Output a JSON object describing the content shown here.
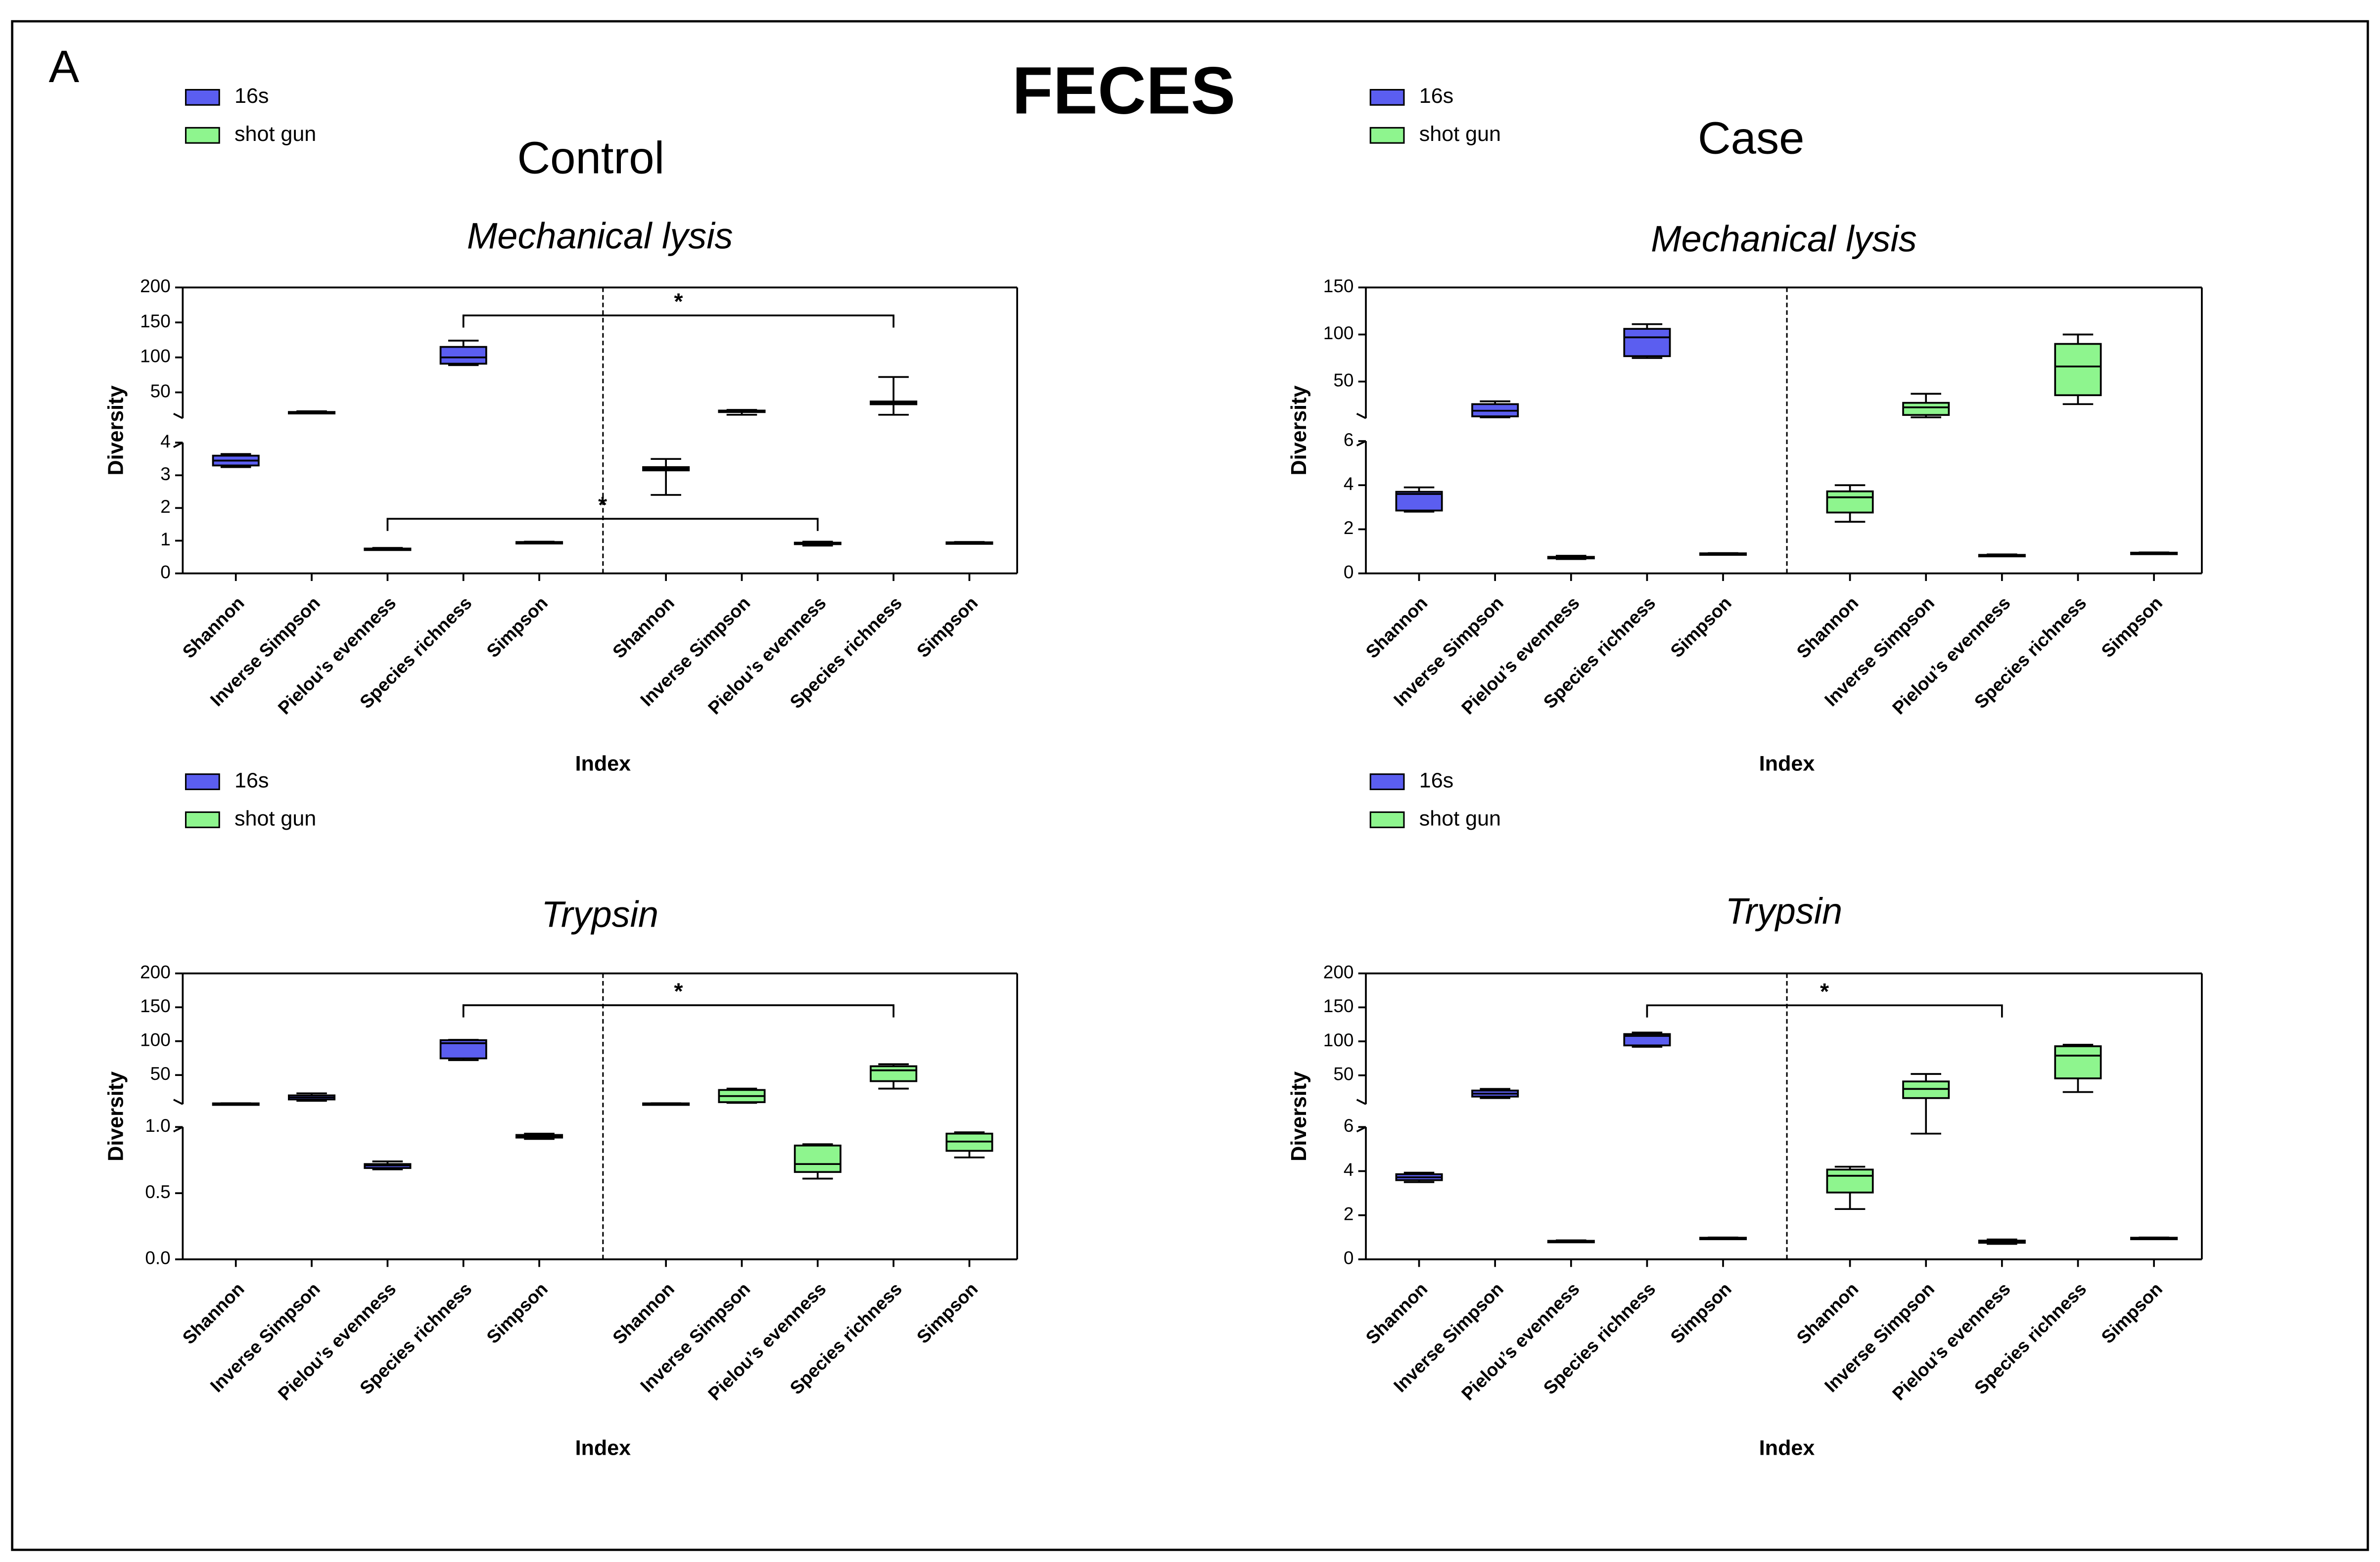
{
  "figure": {
    "label": "A",
    "title": "FECES",
    "columns": [
      "Control",
      "Case"
    ]
  },
  "chart_data": [
    {
      "type": "box",
      "title": "Mechanical lysis",
      "xlabel": "Index",
      "ylabel": "Diversity",
      "categories": [
        "Shannon",
        "Inverse Simpson",
        "Pielou’s evenness",
        "Species richness",
        "Simpson"
      ],
      "ylim": [
        0,
        4
      ],
      "yticks": [
        0,
        1,
        2,
        3,
        4
      ],
      "upper_ylim": [
        13,
        200
      ],
      "upper_yticks": [
        50,
        100,
        150,
        200
      ],
      "series": [
        {
          "name": "16s",
          "color": "#5b5ef0",
          "min": [
            3.25,
            20,
            0.72,
            89,
            0.93
          ],
          "q1": [
            3.3,
            21,
            0.74,
            91,
            0.94
          ],
          "median": [
            3.45,
            21.5,
            0.75,
            100,
            0.95
          ],
          "q3": [
            3.6,
            22,
            0.76,
            115,
            0.96
          ],
          "max": [
            3.65,
            23,
            0.78,
            124,
            0.97
          ]
        },
        {
          "name": "shot gun",
          "color": "#8ef58e",
          "min": [
            2.4,
            18,
            0.85,
            18,
            0.92
          ],
          "q1": [
            3.15,
            22,
            0.9,
            33,
            0.93
          ],
          "median": [
            3.2,
            23,
            0.92,
            35,
            0.94
          ],
          "q3": [
            3.25,
            24,
            0.94,
            37,
            0.95
          ],
          "max": [
            3.5,
            25,
            0.97,
            72,
            0.96
          ]
        }
      ],
      "annotations": [
        {
          "text": "*",
          "y": 160,
          "from": {
            "series": "16s",
            "category": "Species richness"
          },
          "to": {
            "series": "shot gun",
            "category": "Species richness"
          }
        },
        {
          "text": "*",
          "y": 1.67,
          "from": {
            "series": "16s",
            "category": "Pielou’s evenness"
          },
          "to": {
            "series": "shot gun",
            "category": "Pielou’s evenness"
          }
        }
      ]
    },
    {
      "type": "box",
      "title": "Mechanical lysis",
      "xlabel": "Index",
      "ylabel": "Diversity",
      "categories": [
        "Shannon",
        "Inverse Simpson",
        "Pielou’s evenness",
        "Species richness",
        "Simpson"
      ],
      "ylim": [
        0,
        6
      ],
      "yticks": [
        0,
        2,
        4,
        6
      ],
      "upper_ylim": [
        11,
        150
      ],
      "upper_yticks": [
        50,
        100,
        150
      ],
      "series": [
        {
          "name": "16s",
          "color": "#5b5ef0",
          "min": [
            2.8,
            12,
            0.65,
            75,
            0.88
          ],
          "q1": [
            2.85,
            13,
            0.68,
            77,
            0.89
          ],
          "median": [
            3.6,
            19,
            0.72,
            97,
            0.9
          ],
          "q3": [
            3.7,
            26,
            0.75,
            106,
            0.91
          ],
          "max": [
            3.9,
            29,
            0.8,
            111,
            0.92
          ]
        },
        {
          "name": "shot gun",
          "color": "#8ef58e",
          "min": [
            2.34,
            12,
            0.78,
            26,
            0.91
          ],
          "q1": [
            2.76,
            14.5,
            0.8,
            35.5,
            0.92
          ],
          "median": [
            3.45,
            22.6,
            0.82,
            66,
            0.93
          ],
          "q3": [
            3.72,
            27.4,
            0.84,
            90,
            0.94
          ],
          "max": [
            4.0,
            37,
            0.86,
            100,
            0.95
          ]
        }
      ],
      "annotations": []
    },
    {
      "type": "box",
      "title": "Trypsin",
      "xlabel": "Index",
      "ylabel": "Diversity",
      "categories": [
        "Shannon",
        "Inverse Simpson",
        "Pielou’s evenness",
        "Species richness",
        "Simpson"
      ],
      "ylim": [
        0,
        1
      ],
      "yticks": [
        {
          "value": 0,
          "label": "0.0"
        },
        0.5,
        {
          "value": 1,
          "label": "1.0"
        }
      ],
      "upper_ylim": [
        7,
        200
      ],
      "upper_yticks": [
        50,
        100,
        150,
        200
      ],
      "series": [
        {
          "name": "16s",
          "color": "#5b5ef0",
          "min": [
            7.6,
            12,
            0.68,
            72,
            0.91
          ],
          "q1": [
            7.8,
            14,
            0.69,
            74.6,
            0.92
          ],
          "median": [
            8,
            17,
            0.71,
            97,
            0.93
          ],
          "q3": [
            8.2,
            20,
            0.72,
            101.5,
            0.94
          ],
          "max": [
            8.4,
            23,
            0.74,
            102,
            0.95
          ]
        },
        {
          "name": "shot gun",
          "color": "#8ef58e",
          "min": [
            7.6,
            9,
            0.61,
            30,
            0.77
          ],
          "q1": [
            7.8,
            10,
            0.66,
            41,
            0.82
          ],
          "median": [
            8,
            19,
            0.72,
            57,
            0.89
          ],
          "q3": [
            8.2,
            28,
            0.86,
            63,
            0.95
          ],
          "max": [
            8.4,
            30,
            0.87,
            66,
            0.96
          ]
        }
      ],
      "annotations": [
        {
          "text": "*",
          "y": 153,
          "from": {
            "series": "16s",
            "category": "Species richness"
          },
          "to": {
            "series": "shot gun",
            "category": "Species richness"
          }
        }
      ]
    },
    {
      "type": "box",
      "title": "Trypsin",
      "xlabel": "Index",
      "ylabel": "Diversity",
      "categories": [
        "Shannon",
        "Inverse Simpson",
        "Pielou’s evenness",
        "Species richness",
        "Simpson"
      ],
      "ylim": [
        0,
        6
      ],
      "yticks": [
        0,
        2,
        4,
        6
      ],
      "upper_ylim": [
        7.5,
        200
      ],
      "upper_yticks": [
        50,
        100,
        150,
        200
      ],
      "series": [
        {
          "name": "16s",
          "color": "#5b5ef0",
          "min": [
            3.5,
            16.5,
            0.78,
            92,
            0.95
          ],
          "q1": [
            3.59,
            18.7,
            0.8,
            94,
            0.96
          ],
          "median": [
            3.72,
            23,
            0.82,
            108,
            0.97
          ],
          "q3": [
            3.86,
            27.6,
            0.84,
            110.7,
            0.98
          ],
          "max": [
            3.93,
            30,
            0.86,
            113,
            0.99
          ]
        },
        {
          "name": "shot gun",
          "color": "#8ef58e",
          "min": [
            2.28,
            5.7,
            0.7,
            25.4,
            0.95
          ],
          "q1": [
            3.03,
            16.5,
            0.75,
            45.5,
            0.96
          ],
          "median": [
            3.79,
            30,
            0.8,
            79,
            0.97
          ],
          "q3": [
            4.07,
            41,
            0.85,
            92.8,
            0.98
          ],
          "max": [
            4.2,
            52,
            0.9,
            95,
            0.99
          ]
        }
      ],
      "annotations": [
        {
          "text": "*",
          "y": 153,
          "from": {
            "series": "16s",
            "category": "Species richness"
          },
          "to": {
            "series": "shot gun",
            "category": "Pielou’s evenness"
          }
        }
      ]
    }
  ]
}
